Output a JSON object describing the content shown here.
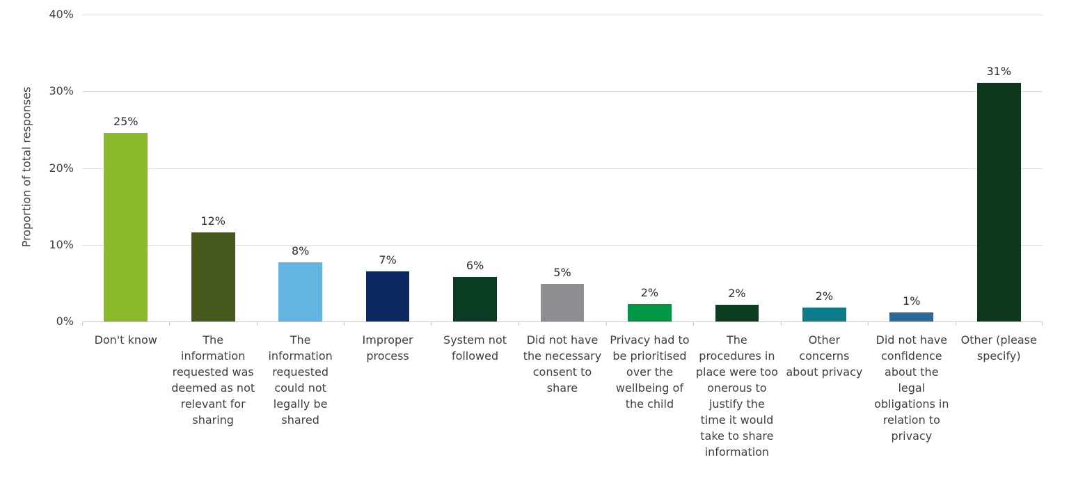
{
  "chart_data": {
    "type": "bar",
    "title": "",
    "xlabel": "",
    "ylabel": "Proportion of total responses",
    "ylim": [
      0,
      40
    ],
    "ytick_values": [
      0,
      10,
      20,
      30,
      40
    ],
    "ytick_labels": [
      "0%",
      "10%",
      "20%",
      "30%",
      "40%"
    ],
    "grid": "horizontal",
    "legend": "none",
    "categories": [
      "Don't know",
      "The information requested was deemed as not relevant for sharing",
      "The information requested could not legally be shared",
      "Improper process",
      "System not followed",
      "Did not have the necessary consent to share",
      "Privacy had to be prioritised over the wellbeing of the child",
      "The procedures in place were too onerous to justify the time it would take to share information",
      "Other concerns about privacy",
      "Did not have confidence about the legal obligations in relation to privacy",
      "Other (please specify)"
    ],
    "values": [
      24.6,
      11.6,
      7.7,
      6.5,
      5.8,
      4.9,
      2.3,
      2.2,
      1.8,
      1.2,
      31.1
    ],
    "value_labels": [
      "25%",
      "12%",
      "8%",
      "7%",
      "6%",
      "5%",
      "2%",
      "2%",
      "2%",
      "1%",
      "31%"
    ],
    "bar_colors": [
      "#8CBA2D",
      "#465A1E",
      "#64B5E1",
      "#0E2962",
      "#0A3B23",
      "#8C8E92",
      "#009646",
      "#0C3C20",
      "#0E7C8A",
      "#2B6899",
      "#0E381E"
    ],
    "colors": {
      "background": "#FFFFFF",
      "gridline": "#DDDDDD",
      "axis_line": "#C9C9C9",
      "text": "#3F3F3F",
      "value_label_text": "#2B2B2B"
    }
  }
}
